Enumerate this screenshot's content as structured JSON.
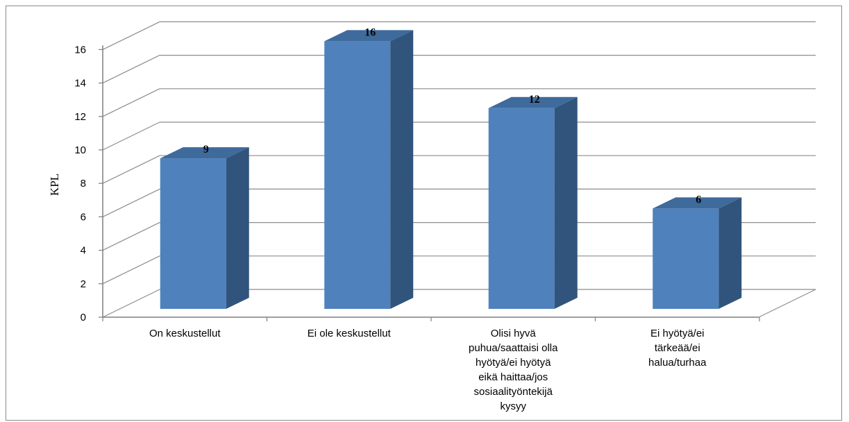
{
  "chart_data": {
    "type": "bar",
    "categories": [
      "On keskustellut",
      "Ei ole keskustellut",
      "Olisi hyvä puhua/saattaisi olla hyötyä/ei hyötyä eikä haittaa/jos sosiaalityöntekijä kysyy",
      "Ei hyötyä/ei tärkeää/ei halua/turhaa"
    ],
    "category_lines": [
      [
        "On keskustellut"
      ],
      [
        "Ei ole keskustellut"
      ],
      [
        "Olisi hyvä",
        "puhua/saattaisi olla",
        "hyötyä/ei hyötyä",
        "eikä haittaa/jos",
        "sosiaalityöntekijä",
        "kysyy"
      ],
      [
        "Ei hyötyä/ei",
        "tärkeää/ei",
        "halua/turhaa"
      ]
    ],
    "values": [
      9,
      16,
      12,
      6
    ],
    "data_labels": [
      "9",
      "16",
      "12",
      "6"
    ],
    "ylabel": "KPL",
    "xlabel": "",
    "ylim": [
      0,
      16
    ],
    "yticks": [
      "0",
      "2",
      "4",
      "6",
      "8",
      "10",
      "12",
      "14",
      "16"
    ],
    "grid": true,
    "style": "3d-column",
    "colors": {
      "front": "#4f81bd",
      "side": "#31547c",
      "top": "#3f6a9c",
      "grid": "#8c8c8c"
    }
  }
}
